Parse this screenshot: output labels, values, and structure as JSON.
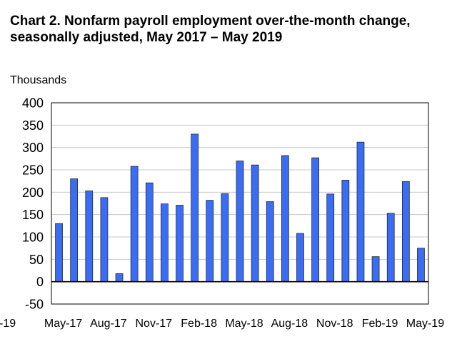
{
  "chart_data": {
    "type": "bar",
    "title_lines": [
      "Chart 2. Nonfarm payroll employment over-the-month change,",
      "seasonally adjusted, May 2017 – May 2019"
    ],
    "ylabel": "Thousands",
    "ylim": [
      -50,
      400
    ],
    "yticks": [
      400,
      350,
      300,
      250,
      200,
      150,
      100,
      50,
      0,
      -50
    ],
    "values": [
      130,
      230,
      203,
      188,
      18,
      258,
      221,
      174,
      171,
      330,
      182,
      197,
      270,
      261,
      179,
      282,
      108,
      277,
      196,
      227,
      312,
      56,
      153,
      224,
      75
    ],
    "x_ticks": [
      {
        "label": "May-17",
        "index": 0
      },
      {
        "label": "Aug-17",
        "index": 3
      },
      {
        "label": "Nov-17",
        "index": 6
      },
      {
        "label": "Feb-18",
        "index": 9
      },
      {
        "label": "May-18",
        "index": 12
      },
      {
        "label": "Aug-18",
        "index": 15
      },
      {
        "label": "Nov-18",
        "index": 18
      },
      {
        "label": "Feb-19",
        "index": 21
      },
      {
        "label": "May-19",
        "index": 24
      }
    ],
    "clipped_left_label": "-19",
    "grid": true,
    "legend": "none",
    "colors": {
      "bar_fill": "#3a6cf4",
      "bar_outline": "#1a1a1a",
      "grid": "#c8c8c8",
      "axis": "#000000"
    }
  }
}
